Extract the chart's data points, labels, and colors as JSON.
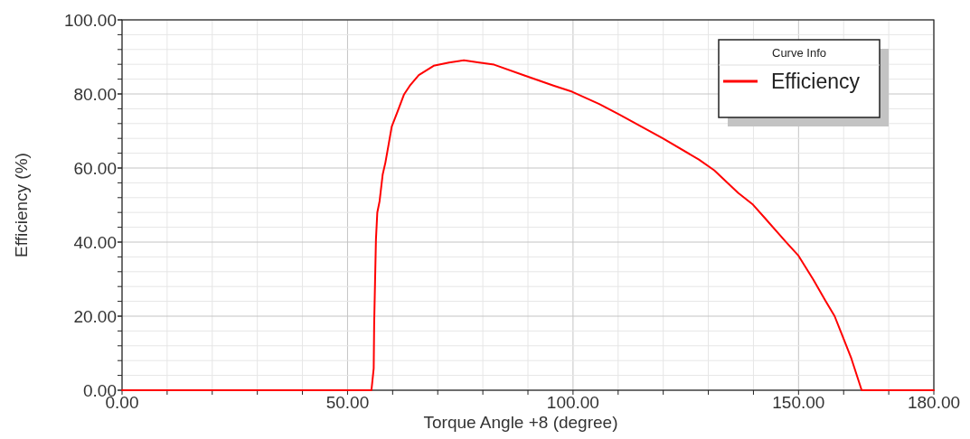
{
  "chart_data": {
    "type": "line",
    "xlabel": "Torque Angle +8 (degree)",
    "ylabel": "Efficiency (%)",
    "legend_title": "Curve Info",
    "legend": "top right",
    "grid": true,
    "line_style": "solid",
    "marker": "none",
    "xlim": [
      0,
      180
    ],
    "ylim": [
      0,
      100
    ],
    "xticks": [
      {
        "value": 0,
        "label": "0.00"
      },
      {
        "value": 10,
        "label": null
      },
      {
        "value": 20,
        "label": null
      },
      {
        "value": 30,
        "label": null
      },
      {
        "value": 40,
        "label": null
      },
      {
        "value": 50,
        "label": "50.00"
      },
      {
        "value": 60,
        "label": null
      },
      {
        "value": 70,
        "label": null
      },
      {
        "value": 80,
        "label": null
      },
      {
        "value": 90,
        "label": null
      },
      {
        "value": 100,
        "label": "100.00"
      },
      {
        "value": 110,
        "label": null
      },
      {
        "value": 120,
        "label": null
      },
      {
        "value": 130,
        "label": null
      },
      {
        "value": 140,
        "label": null
      },
      {
        "value": 150,
        "label": "150.00"
      },
      {
        "value": 160,
        "label": null
      },
      {
        "value": 170,
        "label": null
      },
      {
        "value": 180,
        "label": "180.00"
      }
    ],
    "yticks": [
      {
        "value": 0,
        "label": "0.00"
      },
      {
        "value": 4,
        "label": null
      },
      {
        "value": 8,
        "label": null
      },
      {
        "value": 12,
        "label": null
      },
      {
        "value": 16,
        "label": null
      },
      {
        "value": 20,
        "label": "20.00"
      },
      {
        "value": 24,
        "label": null
      },
      {
        "value": 28,
        "label": null
      },
      {
        "value": 32,
        "label": null
      },
      {
        "value": 36,
        "label": null
      },
      {
        "value": 40,
        "label": "40.00"
      },
      {
        "value": 44,
        "label": null
      },
      {
        "value": 48,
        "label": null
      },
      {
        "value": 52,
        "label": null
      },
      {
        "value": 56,
        "label": null
      },
      {
        "value": 60,
        "label": "60.00"
      },
      {
        "value": 64,
        "label": null
      },
      {
        "value": 68,
        "label": null
      },
      {
        "value": 72,
        "label": null
      },
      {
        "value": 76,
        "label": null
      },
      {
        "value": 80,
        "label": "80.00"
      },
      {
        "value": 84,
        "label": null
      },
      {
        "value": 88,
        "label": null
      },
      {
        "value": 92,
        "label": null
      },
      {
        "value": 96,
        "label": null
      },
      {
        "value": 100,
        "label": "100.00"
      }
    ],
    "series": [
      {
        "name": "Efficiency",
        "color": "#ff0000",
        "x": [
          0,
          55.3,
          55.8,
          55.9,
          56.1,
          56.3,
          56.6,
          57.1,
          57.8,
          58.4,
          59.1,
          59.8,
          61.1,
          62.5,
          63.8,
          65.8,
          69.1,
          72.5,
          75.8,
          79.2,
          82.5,
          89.2,
          95.8,
          99.8,
          105.8,
          110.2,
          119.9,
          127.9,
          131.3,
          136.6,
          139.9,
          142.6,
          147.3,
          150,
          153.3,
          156,
          158,
          159.6,
          161.7,
          164,
          180
        ],
        "values": [
          0,
          0,
          5.9,
          17.6,
          29.3,
          40.7,
          48,
          51,
          58.3,
          61.5,
          66.3,
          71.2,
          75.3,
          79.8,
          82.2,
          85.1,
          87.6,
          88.5,
          89.1,
          88.5,
          87.9,
          85,
          82.2,
          80.6,
          77.3,
          74.5,
          68,
          62.3,
          59.4,
          53.3,
          50.1,
          46.4,
          39.9,
          36.3,
          29.8,
          24.1,
          20,
          15.1,
          8.6,
          0,
          0
        ]
      }
    ]
  }
}
